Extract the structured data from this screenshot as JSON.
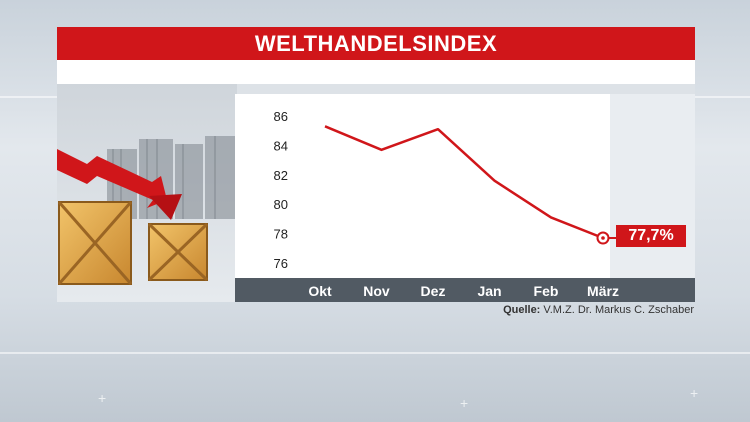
{
  "title": "WELTHANDELSINDEX",
  "source_label": "Quelle:",
  "source_text": "V.M.Z. Dr. Markus C. Zschaber",
  "end_label": "77,7%",
  "colors": {
    "accent": "#d0161a",
    "axis_bar": "#515a63"
  },
  "chart_data": {
    "type": "line",
    "title": "WELTHANDELSINDEX",
    "categories": [
      "Okt",
      "Nov",
      "Dez",
      "Jan",
      "Feb",
      "März"
    ],
    "y_ticks": [
      86,
      84,
      82,
      80,
      78,
      76
    ],
    "ylim": [
      75,
      87
    ],
    "series": [
      {
        "values": [
          85.3,
          83.7,
          85.1,
          81.6,
          79.1,
          77.7
        ]
      }
    ],
    "end_value_label": "77,7%",
    "grid": false
  }
}
